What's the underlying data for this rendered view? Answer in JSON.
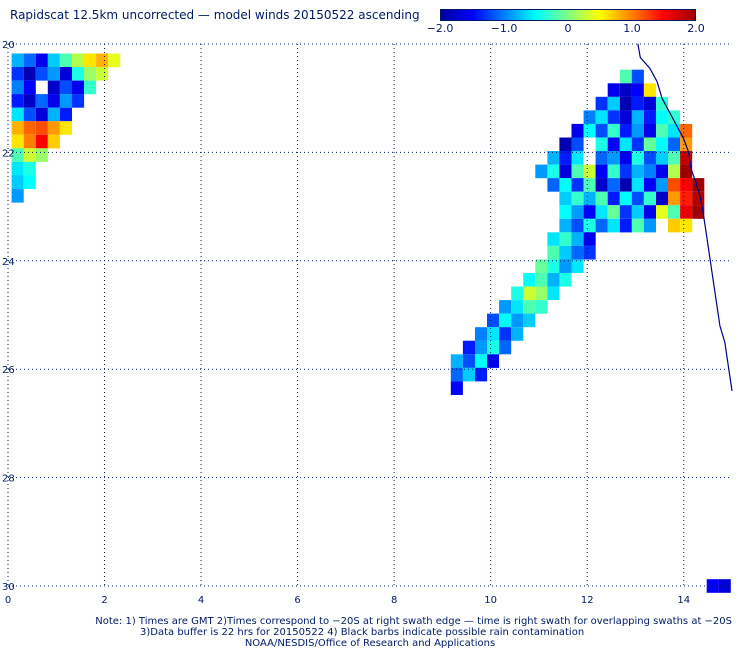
{
  "title": "Rapidscat 12.5km uncorrected — model winds 20150522 ascending",
  "colorbar": {
    "labels": [
      "−2.0",
      "−1.0",
      "0",
      "1.0",
      "2.0"
    ],
    "min": -2.0,
    "max": 2.0,
    "colors": [
      "#0000a0",
      "#0000ff",
      "#0080ff",
      "#00ffff",
      "#80ff80",
      "#ffff00",
      "#ff8000",
      "#ff0000",
      "#a00000"
    ]
  },
  "axes": {
    "x_ticks": [
      "0",
      "2",
      "4",
      "6",
      "8",
      "10",
      "12",
      "14"
    ],
    "y_ticks": [
      "20",
      "22",
      "24",
      "26",
      "28",
      "30"
    ]
  },
  "notes": {
    "line1": "Note: 1) Times are GMT 2)Times correspond to −20S at right swath edge — time is right swath for overlapping swaths at −20S",
    "line2": "3)Data buffer is 22 hrs for 20150522 4) Black barbs indicate possible rain contamination",
    "line3": "NOAA/NESDIS/Office of Research and Applications"
  },
  "chart_data": {
    "type": "heatmap",
    "x_range": [
      0,
      15
    ],
    "y_range": [
      20,
      30
    ],
    "value_range": [
      -2.0,
      2.0
    ],
    "swaths": [
      {
        "name": "",
        "cells": [
          [
            0.2,
            20.3,
            -0.8
          ],
          [
            0.45,
            20.3,
            -1.1
          ],
          [
            0.7,
            20.3,
            -1.6
          ],
          [
            0.95,
            20.3,
            -0.7
          ],
          [
            1.2,
            20.3,
            -0.2
          ],
          [
            1.45,
            20.3,
            0.2
          ],
          [
            1.7,
            20.3,
            0.6
          ],
          [
            1.95,
            20.3,
            0.8
          ],
          [
            2.2,
            20.3,
            0.4
          ],
          [
            0.2,
            20.55,
            -1.3
          ],
          [
            0.45,
            20.55,
            -1.9
          ],
          [
            0.7,
            20.55,
            -1.2
          ],
          [
            0.95,
            20.55,
            -0.9
          ],
          [
            1.2,
            20.55,
            -1.7
          ],
          [
            1.45,
            20.55,
            -0.4
          ],
          [
            1.7,
            20.55,
            0.1
          ],
          [
            1.95,
            20.55,
            0.3
          ],
          [
            0.2,
            20.8,
            -1.0
          ],
          [
            0.45,
            20.8,
            -1.5
          ],
          [
            0.95,
            20.8,
            -1.8
          ],
          [
            1.2,
            20.8,
            -1.2
          ],
          [
            1.45,
            20.8,
            -1.6
          ],
          [
            1.7,
            20.8,
            -0.3
          ],
          [
            0.2,
            21.05,
            -1.4
          ],
          [
            0.45,
            21.05,
            -1.8
          ],
          [
            0.7,
            21.05,
            -1.1
          ],
          [
            0.95,
            21.05,
            -1.6
          ],
          [
            1.2,
            21.05,
            -0.9
          ],
          [
            1.45,
            21.05,
            -1.3
          ],
          [
            0.2,
            21.3,
            -0.6
          ],
          [
            0.45,
            21.3,
            -1.2
          ],
          [
            0.7,
            21.3,
            -1.7
          ],
          [
            0.95,
            21.3,
            -0.8
          ],
          [
            1.2,
            21.3,
            -1.4
          ],
          [
            0.2,
            21.55,
            0.8
          ],
          [
            0.45,
            21.55,
            1.1
          ],
          [
            0.7,
            21.55,
            1.2
          ],
          [
            0.95,
            21.55,
            0.9
          ],
          [
            1.2,
            21.55,
            0.6
          ],
          [
            0.2,
            21.8,
            0.6
          ],
          [
            0.45,
            21.8,
            1.0
          ],
          [
            0.7,
            21.8,
            1.5
          ],
          [
            0.95,
            21.8,
            0.7
          ],
          [
            0.2,
            22.05,
            -0.2
          ],
          [
            0.45,
            22.05,
            0.3
          ],
          [
            0.7,
            22.05,
            0.1
          ],
          [
            0.2,
            22.3,
            -0.6
          ],
          [
            0.45,
            22.3,
            -0.4
          ],
          [
            0.2,
            22.55,
            -0.7
          ],
          [
            0.45,
            22.55,
            -0.5
          ],
          [
            0.2,
            22.8,
            -0.9
          ]
        ]
      },
      {
        "name": "",
        "cells": [
          [
            12.8,
            20.6,
            -0.2
          ],
          [
            13.05,
            20.6,
            -1.2
          ],
          [
            12.55,
            20.85,
            -1.6
          ],
          [
            12.8,
            20.85,
            -1.8
          ],
          [
            13.05,
            20.85,
            -1.5
          ],
          [
            13.3,
            20.85,
            0.6
          ],
          [
            12.3,
            21.1,
            -1.3
          ],
          [
            12.55,
            21.1,
            -0.7
          ],
          [
            12.8,
            21.1,
            -1.9
          ],
          [
            13.05,
            21.1,
            -1.4
          ],
          [
            13.3,
            21.1,
            -1.7
          ],
          [
            13.55,
            21.1,
            -0.3
          ],
          [
            12.05,
            21.35,
            -1.0
          ],
          [
            12.3,
            21.35,
            -0.6
          ],
          [
            12.55,
            21.35,
            -1.3
          ],
          [
            12.8,
            21.35,
            -1.7
          ],
          [
            13.05,
            21.35,
            -0.8
          ],
          [
            13.3,
            21.35,
            -1.4
          ],
          [
            13.55,
            21.35,
            -0.5
          ],
          [
            13.8,
            21.35,
            -0.3
          ],
          [
            11.8,
            21.6,
            -1.6
          ],
          [
            12.05,
            21.6,
            -0.5
          ],
          [
            12.3,
            21.6,
            -1.2
          ],
          [
            12.55,
            21.6,
            -0.3
          ],
          [
            12.8,
            21.6,
            -1.4
          ],
          [
            13.05,
            21.6,
            -0.9
          ],
          [
            13.3,
            21.6,
            -1.6
          ],
          [
            13.55,
            21.6,
            -0.2
          ],
          [
            13.8,
            21.6,
            -0.6
          ],
          [
            14.05,
            21.6,
            1.1
          ],
          [
            11.55,
            21.85,
            -1.9
          ],
          [
            11.8,
            21.85,
            -1.2
          ],
          [
            12.3,
            21.85,
            -0.4
          ],
          [
            12.55,
            21.85,
            -1.5
          ],
          [
            12.8,
            21.85,
            -0.6
          ],
          [
            13.05,
            21.85,
            -1.3
          ],
          [
            13.3,
            21.85,
            -0.1
          ],
          [
            13.55,
            21.85,
            -0.5
          ],
          [
            13.8,
            21.85,
            -1.1
          ],
          [
            14.05,
            21.85,
            0.9
          ],
          [
            11.3,
            22.1,
            -0.8
          ],
          [
            11.55,
            22.1,
            -1.4
          ],
          [
            11.8,
            22.1,
            -0.6
          ],
          [
            12.3,
            22.1,
            -1.1
          ],
          [
            12.55,
            22.1,
            -0.9
          ],
          [
            12.8,
            22.1,
            -1.6
          ],
          [
            13.05,
            22.1,
            -0.4
          ],
          [
            13.3,
            22.1,
            -1.2
          ],
          [
            13.55,
            22.1,
            -0.7
          ],
          [
            13.8,
            22.1,
            -0.2
          ],
          [
            14.05,
            22.1,
            1.8
          ],
          [
            11.05,
            22.35,
            -0.9
          ],
          [
            11.3,
            22.35,
            -0.4
          ],
          [
            11.55,
            22.35,
            -1.7
          ],
          [
            11.8,
            22.35,
            -0.2
          ],
          [
            12.05,
            22.35,
            0.3
          ],
          [
            12.3,
            22.35,
            -1.5
          ],
          [
            12.55,
            22.35,
            -0.3
          ],
          [
            12.8,
            22.35,
            -1.3
          ],
          [
            13.05,
            22.35,
            -0.8
          ],
          [
            13.3,
            22.35,
            -1.0
          ],
          [
            13.55,
            22.35,
            -1.6
          ],
          [
            13.8,
            22.35,
            0.2
          ],
          [
            14.05,
            22.35,
            2.0
          ],
          [
            11.3,
            22.6,
            -1.1
          ],
          [
            11.55,
            22.6,
            -0.5
          ],
          [
            11.8,
            22.6,
            -1.3
          ],
          [
            12.05,
            22.6,
            -0.2
          ],
          [
            12.3,
            22.6,
            -1.8
          ],
          [
            12.55,
            22.6,
            -1.1
          ],
          [
            12.8,
            22.6,
            -1.9
          ],
          [
            13.05,
            22.6,
            -0.6
          ],
          [
            13.3,
            22.6,
            -1.5
          ],
          [
            13.55,
            22.6,
            -0.9
          ],
          [
            13.8,
            22.6,
            1.2
          ],
          [
            14.05,
            22.6,
            1.5
          ],
          [
            14.3,
            22.6,
            2.0
          ],
          [
            11.55,
            22.85,
            -0.7
          ],
          [
            11.8,
            22.85,
            -0.3
          ],
          [
            12.05,
            22.85,
            -0.8
          ],
          [
            12.3,
            22.85,
            -0.2
          ],
          [
            12.55,
            22.85,
            -1.4
          ],
          [
            12.8,
            22.85,
            -0.5
          ],
          [
            13.05,
            22.85,
            -1.2
          ],
          [
            13.3,
            22.85,
            -0.3
          ],
          [
            13.55,
            22.85,
            -1.8
          ],
          [
            13.8,
            22.85,
            0.9
          ],
          [
            14.05,
            22.85,
            1.4
          ],
          [
            14.3,
            22.85,
            1.9
          ],
          [
            11.55,
            23.1,
            -0.5
          ],
          [
            11.8,
            23.1,
            -0.9
          ],
          [
            12.05,
            23.1,
            -1.5
          ],
          [
            12.3,
            23.1,
            -0.6
          ],
          [
            12.55,
            23.1,
            -0.1
          ],
          [
            12.8,
            23.1,
            -1.3
          ],
          [
            13.05,
            23.1,
            -0.7
          ],
          [
            13.3,
            23.1,
            -1.6
          ],
          [
            13.55,
            23.1,
            0.4
          ],
          [
            13.8,
            23.1,
            -0.2
          ],
          [
            14.05,
            23.1,
            1.6
          ],
          [
            14.3,
            23.1,
            2.0
          ],
          [
            11.55,
            23.35,
            -0.8
          ],
          [
            11.8,
            23.35,
            -1.2
          ],
          [
            12.05,
            23.35,
            -0.4
          ],
          [
            12.3,
            23.35,
            -1.1
          ],
          [
            12.55,
            23.35,
            -0.6
          ],
          [
            12.8,
            23.35,
            -1.4
          ],
          [
            13.05,
            23.35,
            -0.2
          ],
          [
            13.3,
            23.35,
            -0.9
          ],
          [
            13.8,
            23.35,
            0.7
          ],
          [
            14.05,
            23.35,
            0.6
          ],
          [
            11.3,
            23.6,
            -0.6
          ],
          [
            11.55,
            23.6,
            -0.3
          ],
          [
            11.8,
            23.6,
            -0.8
          ],
          [
            12.05,
            23.6,
            -1.6
          ],
          [
            11.3,
            23.85,
            -0.2
          ],
          [
            11.55,
            23.85,
            -0.7
          ],
          [
            11.8,
            23.85,
            -1.1
          ],
          [
            12.05,
            23.85,
            -1.3
          ],
          [
            11.05,
            24.1,
            -0.1
          ],
          [
            11.3,
            24.1,
            -0.4
          ],
          [
            11.55,
            24.1,
            -0.9
          ],
          [
            11.8,
            24.1,
            -0.6
          ],
          [
            10.8,
            24.35,
            -0.5
          ],
          [
            11.05,
            24.35,
            -0.2
          ],
          [
            11.3,
            24.35,
            -0.8
          ],
          [
            11.55,
            24.35,
            -0.4
          ],
          [
            10.55,
            24.6,
            -0.4
          ],
          [
            10.8,
            24.6,
            0.3
          ],
          [
            11.05,
            24.6,
            0.1
          ],
          [
            11.3,
            24.6,
            -0.6
          ],
          [
            10.3,
            24.85,
            -0.9
          ],
          [
            10.55,
            24.85,
            -0.6
          ],
          [
            10.8,
            24.85,
            -0.2
          ],
          [
            11.05,
            24.85,
            -0.3
          ],
          [
            10.05,
            25.1,
            -1.2
          ],
          [
            10.3,
            25.1,
            -0.5
          ],
          [
            10.55,
            25.1,
            -0.9
          ],
          [
            10.8,
            25.1,
            -0.7
          ],
          [
            9.8,
            25.35,
            -1.0
          ],
          [
            10.05,
            25.35,
            -0.6
          ],
          [
            10.3,
            25.35,
            -1.3
          ],
          [
            10.55,
            25.35,
            -0.8
          ],
          [
            9.55,
            25.6,
            -1.4
          ],
          [
            9.8,
            25.6,
            -0.9
          ],
          [
            10.05,
            25.6,
            -0.4
          ],
          [
            10.3,
            25.6,
            -1.1
          ],
          [
            9.3,
            25.85,
            -0.8
          ],
          [
            9.55,
            25.85,
            -1.2
          ],
          [
            9.8,
            25.85,
            -0.5
          ],
          [
            10.05,
            25.85,
            -1.6
          ],
          [
            9.3,
            26.1,
            -1.1
          ],
          [
            9.55,
            26.1,
            -0.7
          ],
          [
            9.8,
            26.1,
            -1.4
          ],
          [
            9.3,
            26.35,
            -1.5
          ]
        ]
      },
      {
        "name": "",
        "cells": [
          [
            14.6,
            30.0,
            -1.5
          ],
          [
            14.85,
            30.0,
            -1.7
          ]
        ]
      }
    ],
    "coastline": [
      [
        13.05,
        20.0
      ],
      [
        13.1,
        20.25
      ],
      [
        13.3,
        20.45
      ],
      [
        13.45,
        20.7
      ],
      [
        13.55,
        21.0
      ],
      [
        13.7,
        21.25
      ],
      [
        13.85,
        21.5
      ],
      [
        14.0,
        21.75
      ],
      [
        14.1,
        22.0
      ],
      [
        14.15,
        22.3
      ],
      [
        14.25,
        22.55
      ],
      [
        14.35,
        22.85
      ],
      [
        14.4,
        23.1
      ],
      [
        14.45,
        23.4
      ],
      [
        14.5,
        23.7
      ],
      [
        14.55,
        24.0
      ],
      [
        14.6,
        24.3
      ],
      [
        14.65,
        24.6
      ],
      [
        14.7,
        24.9
      ],
      [
        14.75,
        25.2
      ],
      [
        14.85,
        25.5
      ],
      [
        14.9,
        25.8
      ],
      [
        14.95,
        26.1
      ],
      [
        15.0,
        26.4
      ]
    ]
  }
}
